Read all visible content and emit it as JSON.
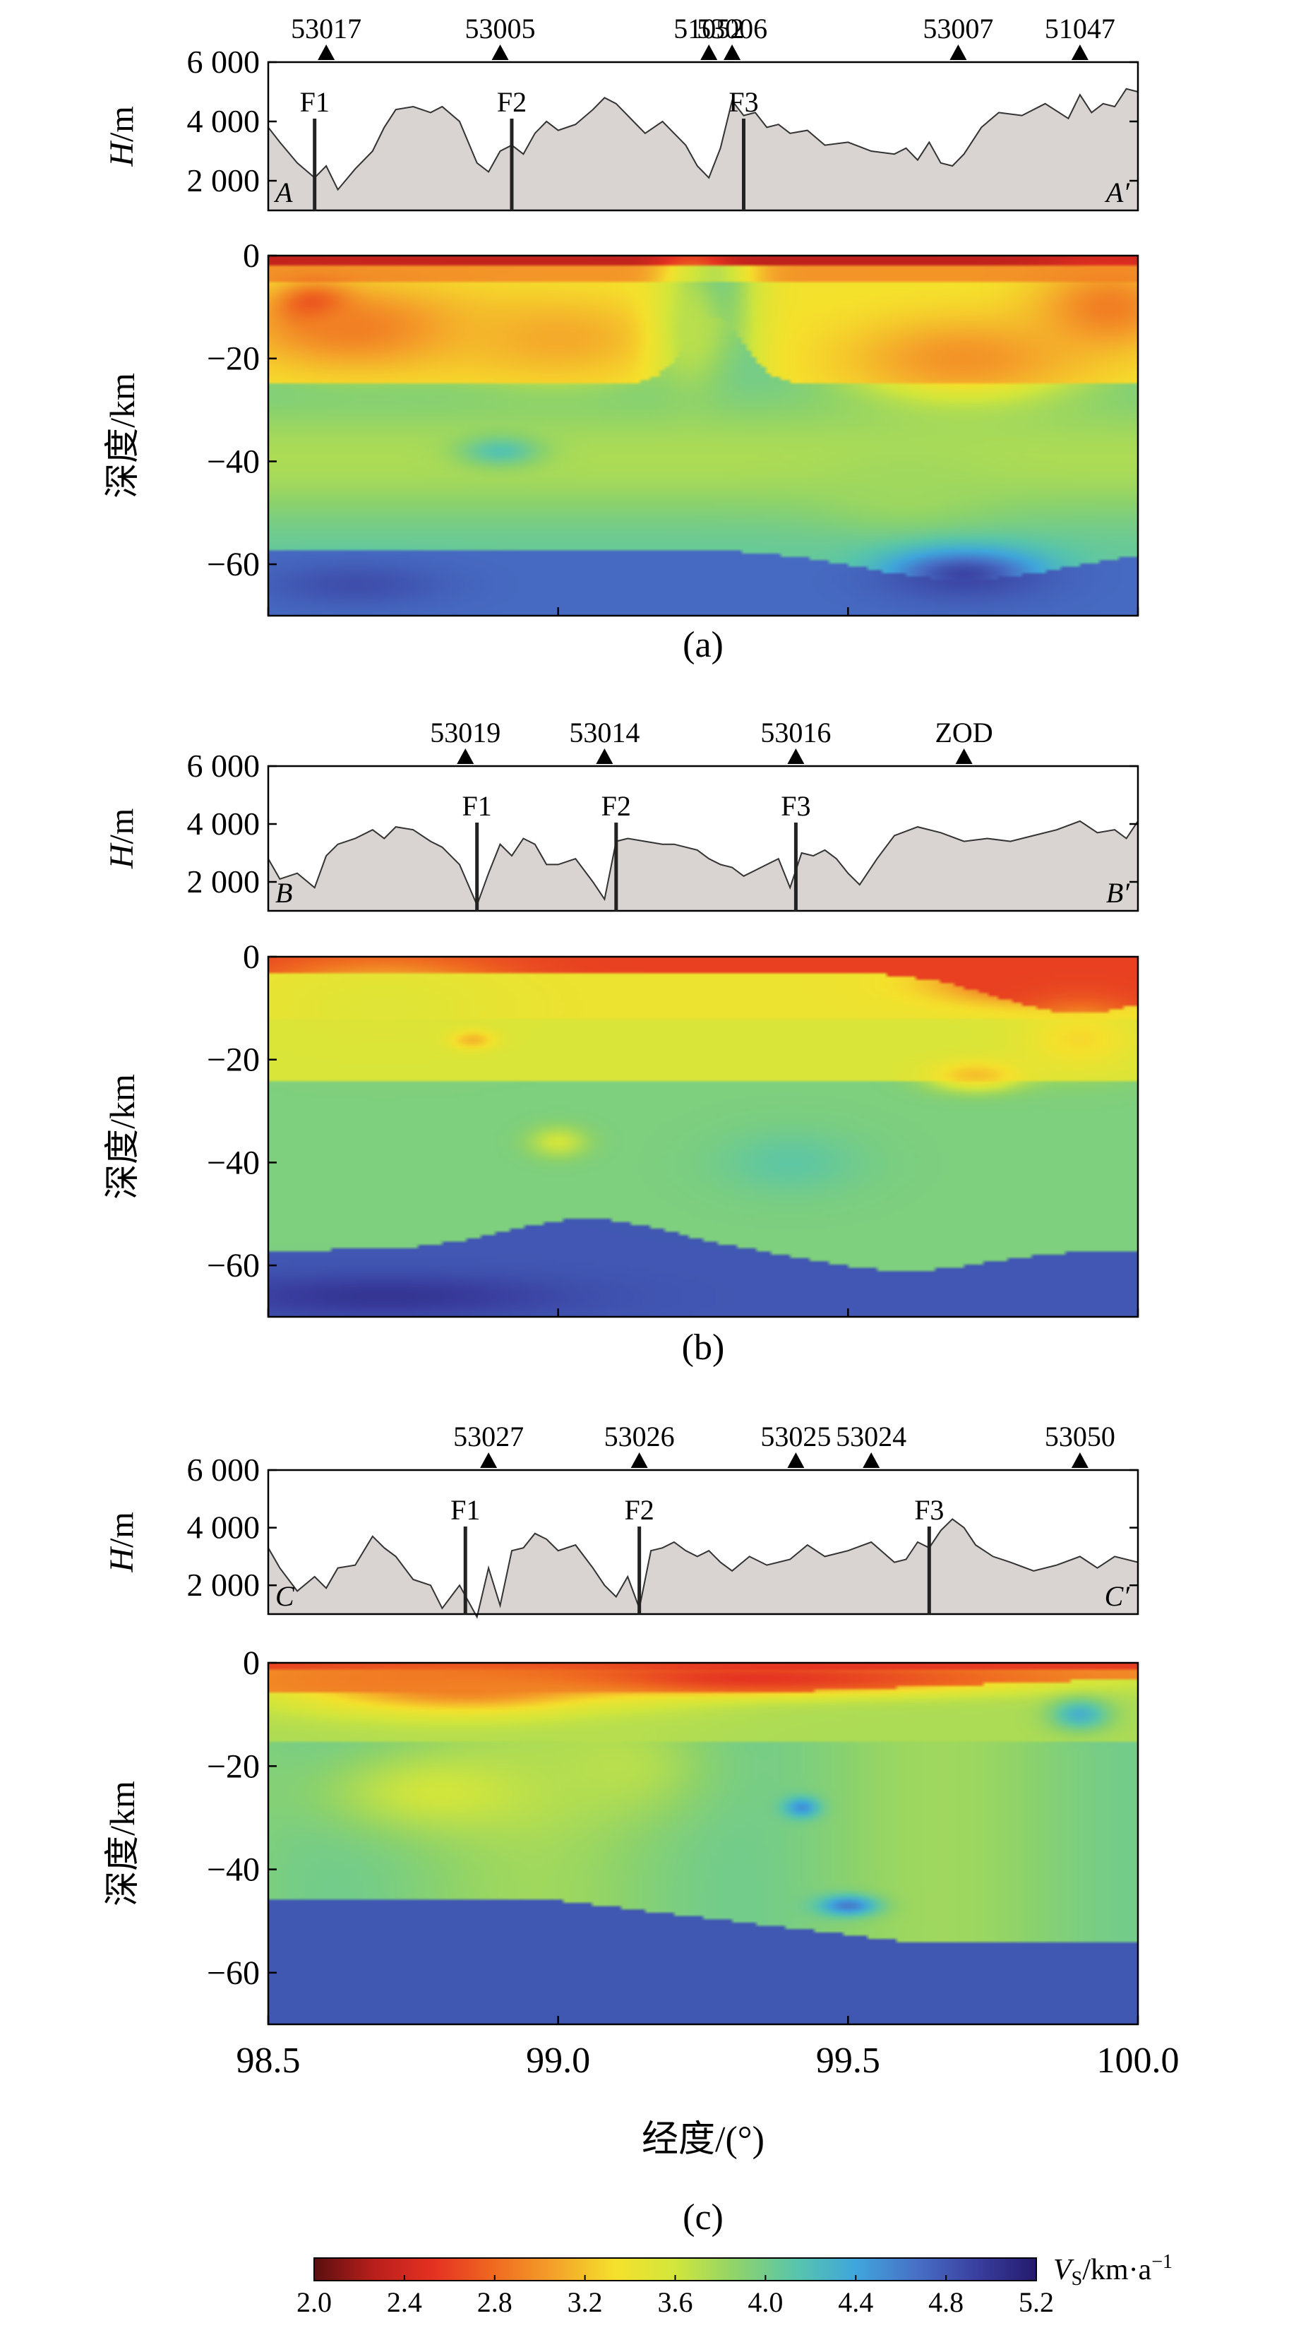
{
  "chart_data": [
    {
      "type": "line",
      "panel": "a",
      "caption": "(a)",
      "title": "",
      "xlim": [
        98.5,
        100.0
      ],
      "ylabel_height": "H/m",
      "ylabel_depth": "深度/km",
      "height_ticks": [
        {
          "value": 2000,
          "label": "2 000"
        },
        {
          "value": 4000,
          "label": "4 000"
        },
        {
          "value": 6000,
          "label": "6 000"
        }
      ],
      "depth_ticks": [
        {
          "value": 0,
          "label": "0"
        },
        {
          "value": -20,
          "label": "−20"
        },
        {
          "value": -40,
          "label": "−40"
        },
        {
          "value": -60,
          "label": "−60"
        }
      ],
      "depth_range": [
        -70,
        0
      ],
      "profile_start": "A",
      "profile_end": "A′",
      "stations": [
        {
          "name": "53017",
          "lon": 98.6
        },
        {
          "name": "53005",
          "lon": 98.9
        },
        {
          "name": "51052",
          "lon": 99.26
        },
        {
          "name": "53006",
          "lon": 99.3
        },
        {
          "name": "53007",
          "lon": 99.69
        },
        {
          "name": "51047",
          "lon": 99.9
        }
      ],
      "faults": [
        {
          "name": "F1",
          "lon": 98.58
        },
        {
          "name": "F2",
          "lon": 98.92
        },
        {
          "name": "F3",
          "lon": 99.32
        }
      ],
      "elevation": {
        "lon": [
          98.5,
          98.52,
          98.55,
          98.58,
          98.6,
          98.62,
          98.65,
          98.68,
          98.7,
          98.72,
          98.75,
          98.78,
          98.8,
          98.83,
          98.86,
          98.88,
          98.9,
          98.92,
          98.94,
          98.96,
          98.98,
          99.0,
          99.03,
          99.06,
          99.08,
          99.1,
          99.12,
          99.15,
          99.18,
          99.2,
          99.22,
          99.24,
          99.26,
          99.28,
          99.3,
          99.32,
          99.34,
          99.36,
          99.38,
          99.4,
          99.43,
          99.46,
          99.5,
          99.54,
          99.58,
          99.6,
          99.62,
          99.64,
          99.66,
          99.68,
          99.7,
          99.73,
          99.76,
          99.8,
          99.84,
          99.88,
          99.9,
          99.92,
          99.94,
          99.96,
          99.98,
          100.0
        ],
        "h": [
          3800,
          3300,
          2600,
          2100,
          2500,
          1700,
          2400,
          3000,
          3800,
          4400,
          4500,
          4300,
          4500,
          4000,
          2600,
          2300,
          3000,
          3200,
          2900,
          3600,
          4000,
          3700,
          3900,
          4400,
          4800,
          4600,
          4200,
          3600,
          4000,
          3600,
          3200,
          2500,
          2100,
          3100,
          4700,
          4200,
          4300,
          3800,
          3900,
          3600,
          3700,
          3200,
          3300,
          3000,
          2900,
          3100,
          2700,
          3300,
          2600,
          2500,
          2900,
          3800,
          4300,
          4200,
          4600,
          4100,
          4900,
          4300,
          4600,
          4500,
          5100,
          5000
        ]
      },
      "velocity_anomalies": [
        {
          "lon": 98.58,
          "depth": -10,
          "vs": 2.4,
          "sigma_lon": 0.06,
          "sigma_depth": 4
        },
        {
          "lon": 98.65,
          "depth": -14,
          "vs": 2.9,
          "sigma_lon": 0.2,
          "sigma_depth": 8
        },
        {
          "lon": 99.0,
          "depth": -16,
          "vs": 3.1,
          "sigma_lon": 0.18,
          "sigma_depth": 8
        },
        {
          "lon": 99.23,
          "depth": -15,
          "vs": 3.7,
          "sigma_lon": 0.06,
          "sigma_depth": 12
        },
        {
          "lon": 99.7,
          "depth": -20,
          "vs": 3.0,
          "sigma_lon": 0.2,
          "sigma_depth": 8
        },
        {
          "lon": 99.95,
          "depth": -10,
          "vs": 2.9,
          "sigma_lon": 0.12,
          "sigma_depth": 8
        },
        {
          "lon": 98.9,
          "depth": -38,
          "vs": 4.15,
          "sigma_lon": 0.07,
          "sigma_depth": 3
        },
        {
          "lon": 99.6,
          "depth": -45,
          "vs": 3.8,
          "sigma_lon": 0.15,
          "sigma_depth": 8
        },
        {
          "lon": 98.65,
          "depth": -64,
          "vs": 4.85,
          "sigma_lon": 0.15,
          "sigma_depth": 4
        },
        {
          "lon": 99.7,
          "depth": -62,
          "vs": 4.9,
          "sigma_lon": 0.14,
          "sigma_depth": 5
        }
      ]
    },
    {
      "type": "line",
      "panel": "b",
      "caption": "(b)",
      "title": "",
      "xlim": [
        98.5,
        100.0
      ],
      "ylabel_height": "H/m",
      "ylabel_depth": "深度/km",
      "height_ticks": [
        {
          "value": 2000,
          "label": "2 000"
        },
        {
          "value": 4000,
          "label": "4 000"
        },
        {
          "value": 6000,
          "label": "6 000"
        }
      ],
      "depth_ticks": [
        {
          "value": 0,
          "label": "0"
        },
        {
          "value": -20,
          "label": "−20"
        },
        {
          "value": -40,
          "label": "−40"
        },
        {
          "value": -60,
          "label": "−60"
        }
      ],
      "depth_range": [
        -70,
        0
      ],
      "profile_start": "B",
      "profile_end": "B′",
      "stations": [
        {
          "name": "53019",
          "lon": 98.84
        },
        {
          "name": "53014",
          "lon": 99.08
        },
        {
          "name": "53016",
          "lon": 99.41
        },
        {
          "name": "ZOD",
          "lon": 99.7
        }
      ],
      "faults": [
        {
          "name": "F1",
          "lon": 98.86
        },
        {
          "name": "F2",
          "lon": 99.1
        },
        {
          "name": "F3",
          "lon": 99.41
        }
      ],
      "elevation": {
        "lon": [
          98.5,
          98.52,
          98.55,
          98.58,
          98.6,
          98.62,
          98.65,
          98.68,
          98.7,
          98.72,
          98.75,
          98.78,
          98.8,
          98.83,
          98.86,
          98.88,
          98.9,
          98.92,
          98.94,
          98.96,
          98.98,
          99.0,
          99.03,
          99.06,
          99.08,
          99.1,
          99.12,
          99.15,
          99.18,
          99.2,
          99.22,
          99.24,
          99.26,
          99.28,
          99.3,
          99.32,
          99.34,
          99.36,
          99.38,
          99.4,
          99.42,
          99.44,
          99.46,
          99.48,
          99.5,
          99.52,
          99.55,
          99.58,
          99.62,
          99.66,
          99.7,
          99.74,
          99.78,
          99.82,
          99.86,
          99.9,
          99.93,
          99.96,
          99.98,
          100.0
        ],
        "h": [
          2800,
          2100,
          2300,
          1800,
          2900,
          3300,
          3500,
          3800,
          3500,
          3900,
          3800,
          3400,
          3200,
          2600,
          1200,
          2300,
          3300,
          2900,
          3500,
          3300,
          2600,
          2600,
          2800,
          2000,
          1400,
          3400,
          3500,
          3400,
          3300,
          3300,
          3200,
          3100,
          2800,
          2600,
          2500,
          2200,
          2400,
          2600,
          2800,
          1800,
          3000,
          2900,
          3100,
          2800,
          2300,
          1900,
          2800,
          3600,
          3900,
          3700,
          3400,
          3500,
          3400,
          3600,
          3800,
          4100,
          3700,
          3800,
          3500,
          4100
        ]
      },
      "velocity_anomalies": [
        {
          "lon": 99.85,
          "depth": -5,
          "vs": 2.6,
          "sigma_lon": 0.18,
          "sigma_depth": 4
        },
        {
          "lon": 99.9,
          "depth": -16,
          "vs": 3.3,
          "sigma_lon": 0.1,
          "sigma_depth": 6
        },
        {
          "lon": 99.72,
          "depth": -23,
          "vs": 3.2,
          "sigma_lon": 0.08,
          "sigma_depth": 3
        },
        {
          "lon": 98.85,
          "depth": -16,
          "vs": 3.0,
          "sigma_lon": 0.04,
          "sigma_depth": 2
        },
        {
          "lon": 98.7,
          "depth": -10,
          "vs": 3.5,
          "sigma_lon": 0.2,
          "sigma_depth": 8
        },
        {
          "lon": 99.0,
          "depth": -36,
          "vs": 3.6,
          "sigma_lon": 0.05,
          "sigma_depth": 3
        },
        {
          "lon": 99.4,
          "depth": -40,
          "vs": 4.1,
          "sigma_lon": 0.12,
          "sigma_depth": 6
        },
        {
          "lon": 98.7,
          "depth": -66,
          "vs": 5.0,
          "sigma_lon": 0.3,
          "sigma_depth": 4
        }
      ]
    },
    {
      "type": "line",
      "panel": "c",
      "caption": "(c)",
      "title": "",
      "xlim": [
        98.5,
        100.0
      ],
      "xlabel": "经度/(°)",
      "x_ticks": [
        {
          "value": 98.5,
          "label": "98.5"
        },
        {
          "value": 99.0,
          "label": "99.0"
        },
        {
          "value": 99.5,
          "label": "99.5"
        },
        {
          "value": 100.0,
          "label": "100.0"
        }
      ],
      "ylabel_height": "H/m",
      "ylabel_depth": "深度/km",
      "height_ticks": [
        {
          "value": 2000,
          "label": "2 000"
        },
        {
          "value": 4000,
          "label": "4 000"
        },
        {
          "value": 6000,
          "label": "6 000"
        }
      ],
      "depth_ticks": [
        {
          "value": 0,
          "label": "0"
        },
        {
          "value": -20,
          "label": "−20"
        },
        {
          "value": -40,
          "label": "−40"
        },
        {
          "value": -60,
          "label": "−60"
        }
      ],
      "depth_range": [
        -70,
        0
      ],
      "profile_start": "C",
      "profile_end": "C′",
      "stations": [
        {
          "name": "53027",
          "lon": 98.88
        },
        {
          "name": "53026",
          "lon": 99.14
        },
        {
          "name": "53025",
          "lon": 99.41
        },
        {
          "name": "53024",
          "lon": 99.54
        },
        {
          "name": "53050",
          "lon": 99.9
        }
      ],
      "faults": [
        {
          "name": "F1",
          "lon": 98.84
        },
        {
          "name": "F2",
          "lon": 99.14
        },
        {
          "name": "F3",
          "lon": 99.64
        }
      ],
      "elevation": {
        "lon": [
          98.5,
          98.52,
          98.55,
          98.58,
          98.6,
          98.62,
          98.65,
          98.68,
          98.7,
          98.72,
          98.75,
          98.78,
          98.8,
          98.83,
          98.86,
          98.88,
          98.9,
          98.92,
          98.94,
          98.96,
          98.98,
          99.0,
          99.03,
          99.06,
          99.08,
          99.1,
          99.12,
          99.14,
          99.16,
          99.18,
          99.2,
          99.22,
          99.24,
          99.26,
          99.28,
          99.3,
          99.33,
          99.36,
          99.4,
          99.43,
          99.46,
          99.5,
          99.54,
          99.58,
          99.6,
          99.62,
          99.64,
          99.66,
          99.68,
          99.7,
          99.72,
          99.75,
          99.78,
          99.82,
          99.86,
          99.9,
          99.93,
          99.96,
          100.0
        ],
        "h": [
          3300,
          2600,
          1800,
          2300,
          1900,
          2600,
          2700,
          3700,
          3300,
          3000,
          2200,
          2000,
          1200,
          2000,
          900,
          2600,
          1300,
          3200,
          3300,
          3800,
          3600,
          3200,
          3400,
          2600,
          2000,
          1600,
          2300,
          1200,
          3200,
          3300,
          3500,
          3200,
          3000,
          3200,
          2800,
          2500,
          3000,
          2700,
          2900,
          3400,
          3000,
          3200,
          3500,
          2800,
          2900,
          3500,
          3300,
          3900,
          4300,
          4000,
          3400,
          3000,
          2800,
          2500,
          2700,
          3000,
          2600,
          3000,
          2800
        ]
      },
      "velocity_anomalies": [
        {
          "lon": 99.25,
          "depth": -3,
          "vs": 2.5,
          "sigma_lon": 0.5,
          "sigma_depth": 3
        },
        {
          "lon": 98.85,
          "depth": -5,
          "vs": 2.9,
          "sigma_lon": 0.3,
          "sigma_depth": 5
        },
        {
          "lon": 98.8,
          "depth": -25,
          "vs": 3.6,
          "sigma_lon": 0.2,
          "sigma_depth": 8
        },
        {
          "lon": 99.1,
          "depth": -20,
          "vs": 3.7,
          "sigma_lon": 0.15,
          "sigma_depth": 10
        },
        {
          "lon": 99.42,
          "depth": -28,
          "vs": 4.5,
          "sigma_lon": 0.03,
          "sigma_depth": 2
        },
        {
          "lon": 99.9,
          "depth": -10,
          "vs": 4.3,
          "sigma_lon": 0.05,
          "sigma_depth": 3
        },
        {
          "lon": 99.5,
          "depth": -47,
          "vs": 4.6,
          "sigma_lon": 0.05,
          "sigma_depth": 2
        }
      ]
    }
  ],
  "colorbar": {
    "label": "V",
    "label_sub": "S",
    "label_unit": "/km·a",
    "label_sup": "−1",
    "range": [
      2.0,
      5.2
    ],
    "ticks": [
      "2.0",
      "2.4",
      "2.8",
      "3.2",
      "3.6",
      "4.0",
      "4.4",
      "4.8",
      "5.2"
    ],
    "colors": [
      "#5a0f0f",
      "#b91f1c",
      "#e53222",
      "#ef6a20",
      "#f4a22a",
      "#f5e12c",
      "#d2e63c",
      "#8fd36a",
      "#58c5ab",
      "#3fa6dc",
      "#4870c6",
      "#3a3fa0",
      "#251a6c"
    ]
  }
}
